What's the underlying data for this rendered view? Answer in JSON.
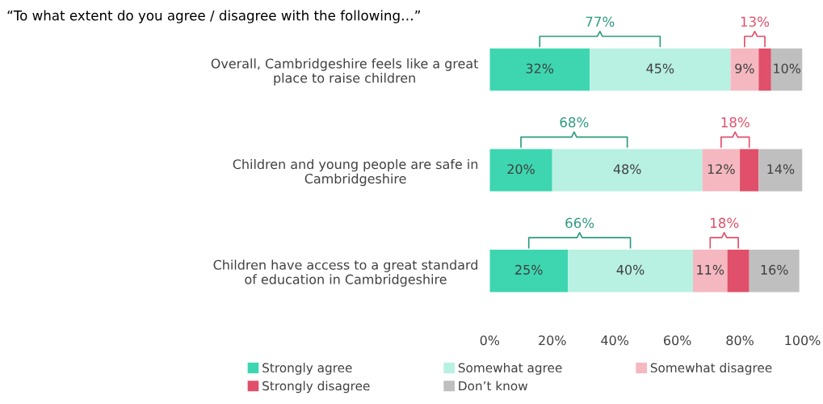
{
  "chart_data": {
    "type": "bar",
    "orientation": "horizontal",
    "stacked": true,
    "title": "“To what extent do you agree / disagree with the following…”",
    "categories": [
      "Overall, Cambridgeshire feels like a great\nplace to raise children",
      "Children and young people are safe in\nCambridgeshire",
      "Children have access to a great standard\nof education in Cambridgeshire"
    ],
    "series": [
      {
        "name": "Strongly agree",
        "color": "#3dd6b0",
        "values": [
          32,
          20,
          25
        ],
        "value_labels": [
          "32%",
          "20%",
          "25%"
        ]
      },
      {
        "name": "Somewhat agree",
        "color": "#b8f0e2",
        "values": [
          45,
          48,
          40
        ],
        "value_labels": [
          "45%",
          "48%",
          "40%"
        ]
      },
      {
        "name": "Somewhat disagree",
        "color": "#f5b8c0",
        "values": [
          9,
          12,
          11
        ],
        "value_labels": [
          "9%",
          "12%",
          "11%"
        ]
      },
      {
        "name": "Strongly disagree",
        "color": "#e0506a",
        "values": [
          4,
          6,
          7
        ],
        "value_labels": [
          null,
          null,
          null
        ]
      },
      {
        "name": "Don’t know",
        "color": "#bfbfbf",
        "values": [
          10,
          14,
          16
        ],
        "value_labels": [
          "10%",
          "14%",
          "16%"
        ]
      }
    ],
    "xlim": [
      0,
      100
    ],
    "xticks": [
      {
        "value": 0,
        "label": "0%"
      },
      {
        "value": 20,
        "label": "20%"
      },
      {
        "value": 40,
        "label": "40%"
      },
      {
        "value": 60,
        "label": "60%"
      },
      {
        "value": 80,
        "label": "80%"
      },
      {
        "value": 100,
        "label": "100%"
      }
    ],
    "annotations": [
      "77%",
      "13%",
      "68%",
      "18%",
      "66%",
      "18%"
    ],
    "legend": "bottom",
    "grid": false
  }
}
